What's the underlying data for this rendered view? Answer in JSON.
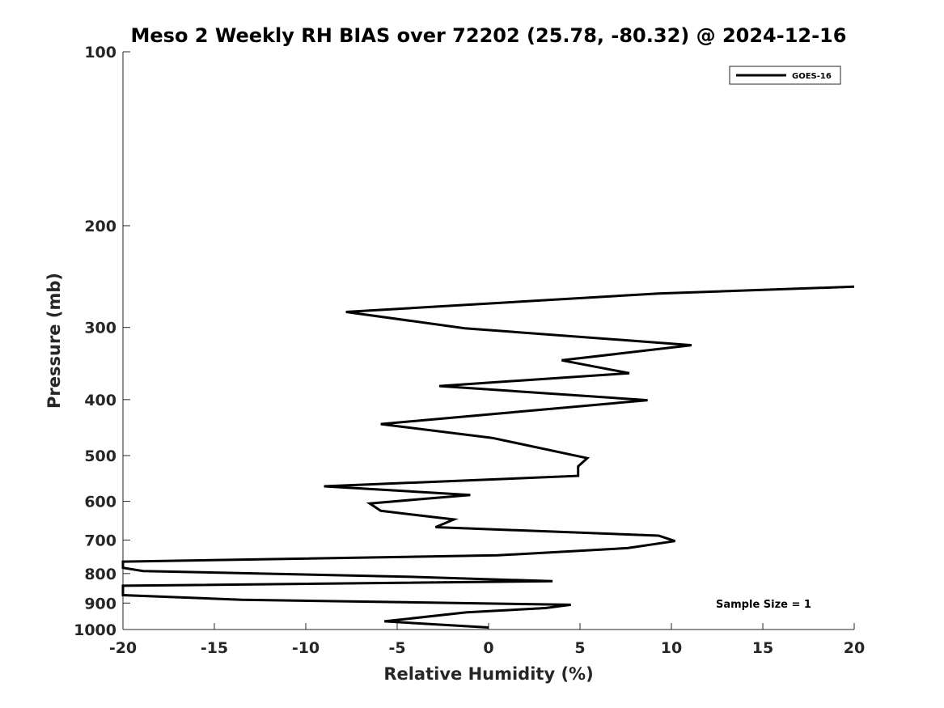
{
  "chart_data": {
    "type": "line",
    "title": "Meso 2 Weekly RH BIAS over 72202 (25.78, -80.32) @ 2024-12-16",
    "xlabel": "Relative Humidity (%)",
    "ylabel": "Pressure (mb)",
    "xlim": [
      -20,
      20
    ],
    "ylim": [
      100,
      1000
    ],
    "y_scale": "log",
    "y_reversed": true,
    "grid": false,
    "x_ticks": [
      -20,
      -15,
      -10,
      -5,
      0,
      5,
      10,
      15,
      20
    ],
    "y_ticks": [
      100,
      200,
      300,
      400,
      500,
      600,
      700,
      800,
      900,
      1000
    ],
    "legend": {
      "position": "top-right",
      "entries": [
        "GOES-16"
      ]
    },
    "annotation": "Sample Size = 1",
    "series": [
      {
        "name": "GOES-16",
        "color": "#000000",
        "points": [
          {
            "x": 20.0,
            "y": 255
          },
          {
            "x": 9.3,
            "y": 262
          },
          {
            "x": -7.8,
            "y": 282
          },
          {
            "x": -1.3,
            "y": 301
          },
          {
            "x": 11.1,
            "y": 322
          },
          {
            "x": 4.0,
            "y": 342
          },
          {
            "x": 7.7,
            "y": 360
          },
          {
            "x": -2.7,
            "y": 379
          },
          {
            "x": 8.7,
            "y": 401
          },
          {
            "x": -5.9,
            "y": 441
          },
          {
            "x": 0.2,
            "y": 466
          },
          {
            "x": 5.4,
            "y": 505
          },
          {
            "x": 4.9,
            "y": 522
          },
          {
            "x": 4.9,
            "y": 542
          },
          {
            "x": -9.0,
            "y": 565
          },
          {
            "x": -1.0,
            "y": 585
          },
          {
            "x": -6.5,
            "y": 605
          },
          {
            "x": -5.9,
            "y": 623
          },
          {
            "x": -1.9,
            "y": 645
          },
          {
            "x": -2.9,
            "y": 665
          },
          {
            "x": 9.3,
            "y": 688
          },
          {
            "x": 10.2,
            "y": 703
          },
          {
            "x": 7.6,
            "y": 723
          },
          {
            "x": 0.5,
            "y": 744
          },
          {
            "x": -20.0,
            "y": 763
          },
          {
            "x": -20.0,
            "y": 782
          },
          {
            "x": -18.9,
            "y": 792
          },
          {
            "x": -4.5,
            "y": 810
          },
          {
            "x": 3.5,
            "y": 825
          },
          {
            "x": -20.0,
            "y": 840
          },
          {
            "x": -20.0,
            "y": 872
          },
          {
            "x": -13.5,
            "y": 888
          },
          {
            "x": 4.5,
            "y": 906
          },
          {
            "x": 3.1,
            "y": 918
          },
          {
            "x": -1.2,
            "y": 934
          },
          {
            "x": -5.7,
            "y": 968
          },
          {
            "x": 0.0,
            "y": 992
          }
        ]
      }
    ]
  }
}
